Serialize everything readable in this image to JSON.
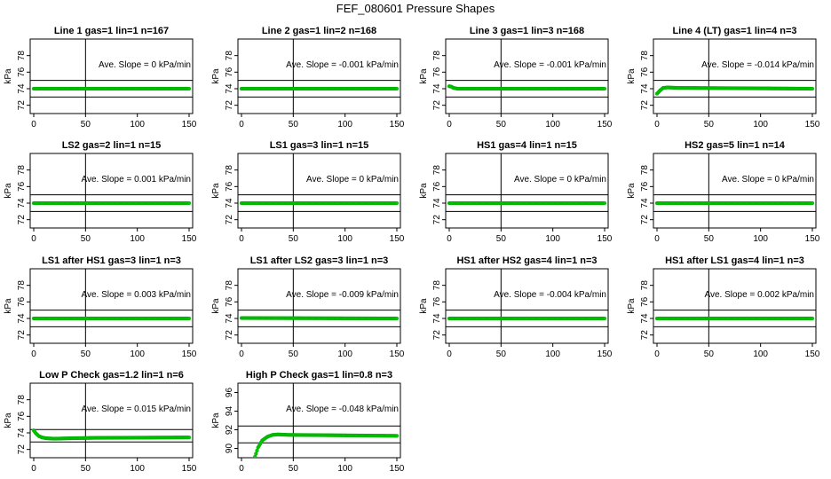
{
  "figure": {
    "title": "FEF_080601  Pressure Shapes"
  },
  "style": {
    "point_color": "#00cc00",
    "point_stroke": "#00a000",
    "line_color": "#000000"
  },
  "chart_data": [
    {
      "type": "scatter",
      "title": "Line 1 gas=1 lin=1 n=167",
      "ylabel": "kPa",
      "xlim": [
        0,
        150
      ],
      "ylim": [
        71,
        80
      ],
      "xticks": [
        0,
        50,
        100,
        150
      ],
      "yticks": [
        72,
        74,
        76,
        78
      ],
      "hlines": [
        73,
        75
      ],
      "vline": 50,
      "slope_label": "Ave. Slope =  0  kPa/min",
      "x": [
        0,
        150
      ],
      "y": [
        74,
        74
      ]
    },
    {
      "type": "scatter",
      "title": "Line 2 gas=1 lin=2 n=168",
      "ylabel": "kPa",
      "xlim": [
        0,
        150
      ],
      "ylim": [
        71,
        80
      ],
      "xticks": [
        0,
        50,
        100,
        150
      ],
      "yticks": [
        72,
        74,
        76,
        78
      ],
      "hlines": [
        73,
        75
      ],
      "vline": 50,
      "slope_label": "Ave. Slope =  -0.001  kPa/min",
      "x": [
        0,
        150
      ],
      "y": [
        74,
        74
      ]
    },
    {
      "type": "scatter",
      "title": "Line 3 gas=1 lin=3 n=168",
      "ylabel": "kPa",
      "xlim": [
        0,
        150
      ],
      "ylim": [
        71,
        80
      ],
      "xticks": [
        0,
        50,
        100,
        150
      ],
      "yticks": [
        72,
        74,
        76,
        78
      ],
      "hlines": [
        73,
        75
      ],
      "vline": 50,
      "slope_label": "Ave. Slope =  -0.001  kPa/min",
      "x": [
        0,
        2,
        4,
        8,
        150
      ],
      "y": [
        74.3,
        74.25,
        74.1,
        74,
        74
      ]
    },
    {
      "type": "scatter",
      "title": "Line 4 (LT) gas=1 lin=4 n=3",
      "ylabel": "kPa",
      "xlim": [
        0,
        150
      ],
      "ylim": [
        71,
        80
      ],
      "xticks": [
        0,
        50,
        100,
        150
      ],
      "yticks": [
        72,
        74,
        76,
        78
      ],
      "hlines": [
        73,
        75
      ],
      "vline": 50,
      "slope_label": "Ave. Slope =  -0.014  kPa/min",
      "x": [
        0,
        3,
        6,
        10,
        20,
        150
      ],
      "y": [
        73.4,
        73.8,
        74.1,
        74.15,
        74.1,
        74
      ]
    },
    {
      "type": "scatter",
      "title": "LS2 gas=2 lin=1 n=15",
      "ylabel": "kPa",
      "xlim": [
        0,
        150
      ],
      "ylim": [
        71,
        80
      ],
      "xticks": [
        0,
        50,
        100,
        150
      ],
      "yticks": [
        72,
        74,
        76,
        78
      ],
      "hlines": [
        73,
        75
      ],
      "vline": 50,
      "slope_label": "Ave. Slope =  0.001  kPa/min",
      "x": [
        0,
        150
      ],
      "y": [
        74,
        74
      ]
    },
    {
      "type": "scatter",
      "title": "LS1 gas=3 lin=1 n=15",
      "ylabel": "kPa",
      "xlim": [
        0,
        150
      ],
      "ylim": [
        71,
        80
      ],
      "xticks": [
        0,
        50,
        100,
        150
      ],
      "yticks": [
        72,
        74,
        76,
        78
      ],
      "hlines": [
        73,
        75
      ],
      "vline": 50,
      "slope_label": "Ave. Slope =  0  kPa/min",
      "x": [
        0,
        150
      ],
      "y": [
        74,
        74
      ]
    },
    {
      "type": "scatter",
      "title": "HS1 gas=4 lin=1 n=15",
      "ylabel": "kPa",
      "xlim": [
        0,
        150
      ],
      "ylim": [
        71,
        80
      ],
      "xticks": [
        0,
        50,
        100,
        150
      ],
      "yticks": [
        72,
        74,
        76,
        78
      ],
      "hlines": [
        73,
        75
      ],
      "vline": 50,
      "slope_label": "Ave. Slope =  0  kPa/min",
      "x": [
        0,
        150
      ],
      "y": [
        74,
        74
      ]
    },
    {
      "type": "scatter",
      "title": "HS2 gas=5 lin=1 n=14",
      "ylabel": "kPa",
      "xlim": [
        0,
        150
      ],
      "ylim": [
        71,
        80
      ],
      "xticks": [
        0,
        50,
        100,
        150
      ],
      "yticks": [
        72,
        74,
        76,
        78
      ],
      "hlines": [
        73,
        75
      ],
      "vline": 50,
      "slope_label": "Ave. Slope =  0  kPa/min",
      "x": [
        0,
        150
      ],
      "y": [
        74,
        74
      ]
    },
    {
      "type": "scatter",
      "title": "LS1 after HS1 gas=3 lin=1 n=3",
      "ylabel": "kPa",
      "xlim": [
        0,
        150
      ],
      "ylim": [
        71,
        80
      ],
      "xticks": [
        0,
        50,
        100,
        150
      ],
      "yticks": [
        72,
        74,
        76,
        78
      ],
      "hlines": [
        73,
        75
      ],
      "vline": 50,
      "slope_label": "Ave. Slope =  0.003  kPa/min",
      "x": [
        0,
        150
      ],
      "y": [
        74,
        74
      ]
    },
    {
      "type": "scatter",
      "title": "LS1 after LS2 gas=3 lin=1 n=3",
      "ylabel": "kPa",
      "xlim": [
        0,
        150
      ],
      "ylim": [
        71,
        80
      ],
      "xticks": [
        0,
        50,
        100,
        150
      ],
      "yticks": [
        72,
        74,
        76,
        78
      ],
      "hlines": [
        73,
        75
      ],
      "vline": 50,
      "slope_label": "Ave. Slope =  -0.009  kPa/min",
      "x": [
        0,
        150
      ],
      "y": [
        74.05,
        74
      ]
    },
    {
      "type": "scatter",
      "title": "HS1 after HS2 gas=4 lin=1 n=3",
      "ylabel": "kPa",
      "xlim": [
        0,
        150
      ],
      "ylim": [
        71,
        80
      ],
      "xticks": [
        0,
        50,
        100,
        150
      ],
      "yticks": [
        72,
        74,
        76,
        78
      ],
      "hlines": [
        73,
        75
      ],
      "vline": 50,
      "slope_label": "Ave. Slope =  -0.004  kPa/min",
      "x": [
        0,
        150
      ],
      "y": [
        74,
        74
      ]
    },
    {
      "type": "scatter",
      "title": "HS1 after LS1 gas=4 lin=1 n=3",
      "ylabel": "kPa",
      "xlim": [
        0,
        150
      ],
      "ylim": [
        71,
        80
      ],
      "xticks": [
        0,
        50,
        100,
        150
      ],
      "yticks": [
        72,
        74,
        76,
        78
      ],
      "hlines": [
        73,
        75
      ],
      "vline": 50,
      "slope_label": "Ave. Slope =  0.002  kPa/min",
      "x": [
        0,
        150
      ],
      "y": [
        74,
        74
      ]
    },
    {
      "type": "scatter",
      "title": "Low P Check gas=1.2 lin=1 n=6",
      "ylabel": "kPa",
      "xlim": [
        0,
        150
      ],
      "ylim": [
        71,
        80
      ],
      "xticks": [
        0,
        50,
        100,
        150
      ],
      "yticks": [
        72,
        74,
        76,
        78
      ],
      "hlines": [
        72.9,
        74.4
      ],
      "vline": 50,
      "slope_label": "Ave. Slope =  0.015  kPa/min",
      "x": [
        0,
        2,
        5,
        8,
        12,
        20,
        35,
        60,
        150
      ],
      "y": [
        74.3,
        73.95,
        73.6,
        73.45,
        73.35,
        73.3,
        73.35,
        73.4,
        73.45
      ]
    },
    {
      "type": "scatter",
      "title": "High P Check gas=1 lin=0.8 n=3",
      "ylabel": "kPa",
      "xlim": [
        0,
        150
      ],
      "ylim": [
        89,
        97
      ],
      "xticks": [
        0,
        50,
        100,
        150
      ],
      "yticks": [
        90,
        92,
        94,
        96
      ],
      "hlines": [
        90.6,
        92.4
      ],
      "vline": 50,
      "slope_label": "Ave. Slope =  -0.048  kPa/min",
      "x": [
        13,
        16,
        20,
        25,
        30,
        35,
        45,
        150
      ],
      "y": [
        89.1,
        90.1,
        90.85,
        91.25,
        91.45,
        91.5,
        91.45,
        91.35
      ]
    }
  ]
}
